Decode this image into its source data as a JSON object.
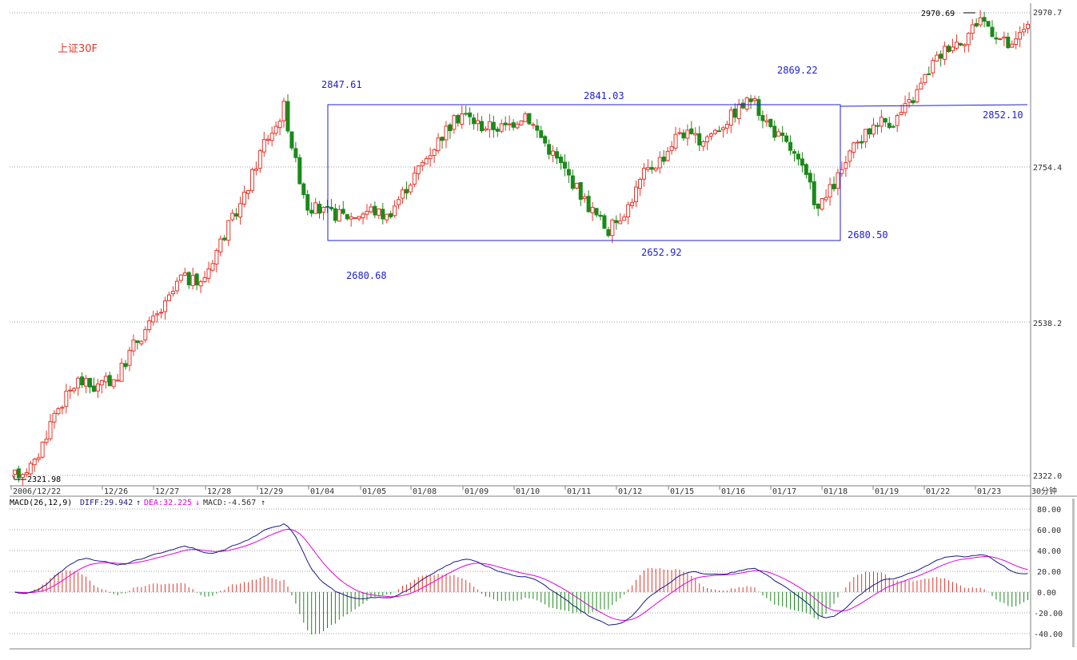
{
  "chart_data": {
    "type": "candlestick",
    "title": "上证30F",
    "price_axis": {
      "ticks": [
        "2970.7",
        "2754.4",
        "2538.2",
        "2322.0"
      ],
      "ylim": [
        2322.0,
        2970.7
      ]
    },
    "x_labels": [
      "2006/12/22",
      "12/26",
      "12/27",
      "12/28",
      "12/29",
      "01/04",
      "01/05",
      "01/08",
      "01/09",
      "01/10",
      "01/11",
      "01/12",
      "01/15",
      "01/16",
      "01/17",
      "01/18",
      "01/19",
      "01/22",
      "01/23"
    ],
    "period_label": "30分钟",
    "annotations": {
      "low_start": "2321.98",
      "box_top_left": "2847.61",
      "box_low_left": "2680.68",
      "box_top_mid": "2841.03",
      "box_low_mid": "2652.92",
      "box_top_right": "2869.22",
      "box_low_right": "2680.50",
      "hline_value": "2852.10",
      "high_end": "2970.69"
    },
    "macd": {
      "params": "MACD(26,12,9)",
      "diff_label": "DIFF:29.942",
      "dea_label": "DEA:32.225",
      "macd_label": "MACD:-4.567",
      "axis_ticks": [
        "80.00",
        "60.00",
        "40.00",
        "20.00",
        "0.00",
        "-20.00",
        "-40.00"
      ],
      "ylim": [
        -46,
        86
      ]
    },
    "colors": {
      "up": "#e8352b",
      "down": "#1a8a1a",
      "diff": "#1a1a80",
      "dea": "#e000e0",
      "annot": "#2020d0",
      "grid": "#9a9a9a"
    }
  }
}
